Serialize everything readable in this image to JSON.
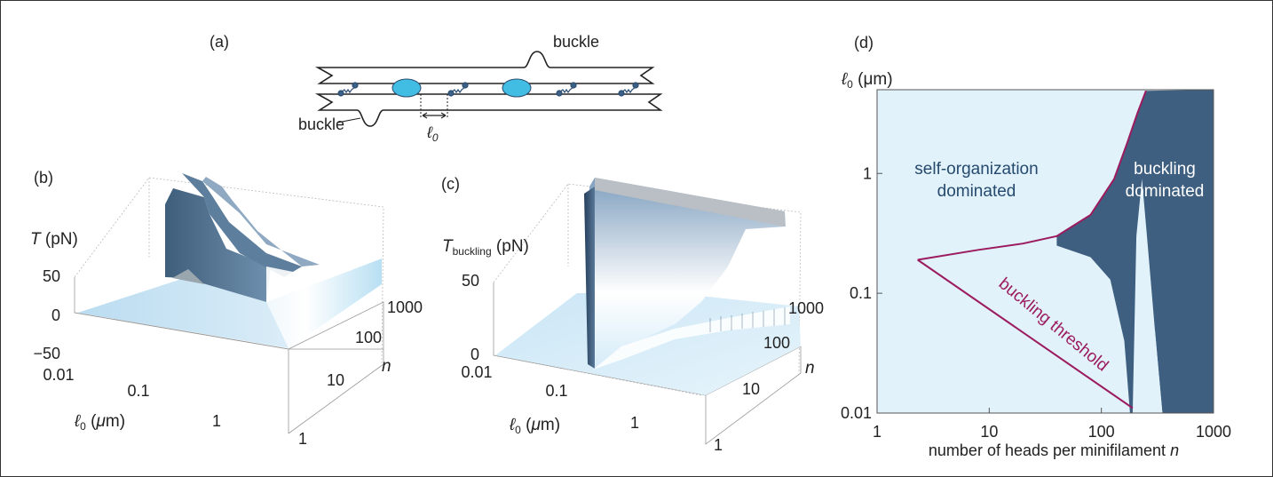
{
  "panel_a": {
    "label": "(a)",
    "buckle_top": "buckle",
    "buckle_bottom": "buckle",
    "spacing_symbol": "ℓ",
    "spacing_subscript": "0"
  },
  "panel_b": {
    "label": "(b)",
    "z_axis_symbol": "T",
    "z_axis_unit": "(pN)",
    "z_ticks": [
      "50",
      "0",
      "−50"
    ],
    "x_ticks": [
      "0.01",
      "0.1",
      "1"
    ],
    "x_label_symbol": "ℓ",
    "x_label_subscript": "0",
    "x_label_unit_open": "(",
    "x_label_mu": "μ",
    "x_label_unit_close": "m)",
    "n_ticks": [
      "1000",
      "100",
      "10",
      "1"
    ],
    "n_label": "n"
  },
  "panel_c": {
    "label": "(c)",
    "z_axis_symbol": "T",
    "z_axis_subscript": "buckling",
    "z_axis_unit": "(pN)",
    "z_ticks": [
      "50",
      "0"
    ],
    "x_ticks": [
      "0.01",
      "0.1",
      "1"
    ],
    "x_label_symbol": "ℓ",
    "x_label_subscript": "0",
    "x_label_unit_open": "(",
    "x_label_mu": "μ",
    "x_label_unit_close": "m)",
    "n_ticks": [
      "1000",
      "100",
      "10",
      "1"
    ],
    "n_label": "n"
  },
  "chart_data": {
    "type": "heatmap",
    "label": "(d)",
    "ylabel_symbol": "ℓ",
    "ylabel_subscript": "0",
    "ylabel_unit": "(μm)",
    "xlabel": "number of heads per minifilament",
    "xlabel_var": "n",
    "x_scale": "log",
    "y_scale": "log",
    "xlim": [
      1,
      1000
    ],
    "ylim": [
      0.01,
      5
    ],
    "x_ticks": [
      1,
      10,
      100,
      1000
    ],
    "x_tick_labels": [
      "1",
      "10",
      "100",
      "1000"
    ],
    "y_ticks": [
      0.01,
      0.1,
      1
    ],
    "y_tick_labels": [
      "0.01",
      "0.1",
      "1"
    ],
    "regions": [
      {
        "label_line1": "self-organization",
        "label_line2": "dominated",
        "color": "#e1f2fa"
      },
      {
        "label_line1": "buckling",
        "label_line2": "dominated",
        "color": "#3f5f80"
      }
    ],
    "threshold_label": "buckling threshold",
    "threshold_color": "#9c1b5f",
    "threshold_upper": {
      "n": [
        2.3,
        8,
        20,
        40,
        80,
        130,
        170,
        210,
        250
      ],
      "l0": [
        0.19,
        0.23,
        0.26,
        0.3,
        0.45,
        0.9,
        1.8,
        3.2,
        4.9
      ]
    },
    "threshold_lower": {
      "n": [
        2.3,
        190
      ],
      "l0": [
        0.19,
        0.011
      ]
    }
  }
}
